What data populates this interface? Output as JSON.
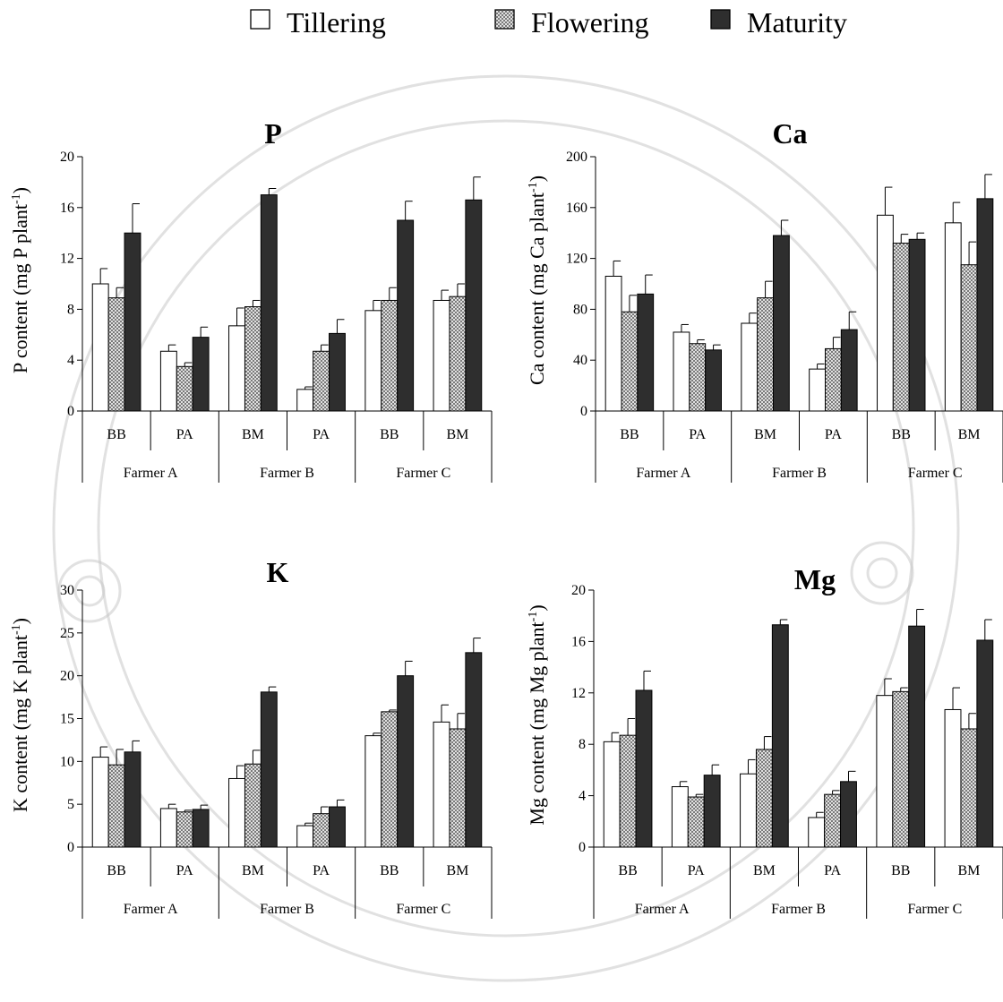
{
  "legend": {
    "items": [
      {
        "label": "Tillering",
        "color": "#ffffff"
      },
      {
        "label": "Flowering",
        "color": "#a8a8a8",
        "pattern": "checkered"
      },
      {
        "label": "Maturity",
        "color": "#2e2e2e"
      }
    ]
  },
  "chart_data": [
    {
      "type": "bar",
      "title": "P",
      "ylabel": "P content (mg P plant",
      "ylabel_sup": "-1",
      "ylabel_close": ")",
      "ylim": [
        0,
        20
      ],
      "yticks": [
        0,
        4,
        8,
        12,
        16,
        20
      ],
      "categories": [
        "BB",
        "PA",
        "BM",
        "PA",
        "BB",
        "BM"
      ],
      "groups": [
        {
          "label": "Farmer A",
          "span": 2
        },
        {
          "label": "Farmer B",
          "span": 2
        },
        {
          "label": "Farmer C",
          "span": 2
        }
      ],
      "series": [
        {
          "name": "Tillering",
          "values": [
            10.0,
            4.7,
            6.7,
            1.7,
            7.9,
            8.7
          ],
          "errors": [
            1.2,
            0.5,
            1.4,
            0.2,
            0.8,
            0.8
          ]
        },
        {
          "name": "Flowering",
          "values": [
            8.9,
            3.5,
            8.2,
            4.7,
            8.7,
            9.0
          ],
          "errors": [
            0.8,
            0.3,
            0.5,
            0.5,
            1.0,
            1.0
          ]
        },
        {
          "name": "Maturity",
          "values": [
            14.0,
            5.8,
            17.0,
            6.1,
            15.0,
            16.6
          ],
          "errors": [
            2.3,
            0.8,
            0.5,
            1.1,
            1.5,
            1.8
          ]
        }
      ]
    },
    {
      "type": "bar",
      "title": "Ca",
      "ylabel": "Ca content (mg Ca plant",
      "ylabel_sup": "-1",
      "ylabel_close": ")",
      "ylim": [
        0,
        200
      ],
      "yticks": [
        0,
        40,
        80,
        120,
        160,
        200
      ],
      "categories": [
        "BB",
        "PA",
        "BM",
        "PA",
        "BB",
        "BM"
      ],
      "groups": [
        {
          "label": "Farmer A",
          "span": 2
        },
        {
          "label": "Farmer B",
          "span": 2
        },
        {
          "label": "Farmer C",
          "span": 2
        }
      ],
      "series": [
        {
          "name": "Tillering",
          "values": [
            106,
            62,
            69,
            33,
            154,
            148
          ],
          "errors": [
            12,
            6,
            8,
            4,
            22,
            16
          ]
        },
        {
          "name": "Flowering",
          "values": [
            78,
            53,
            89,
            49,
            132,
            115
          ],
          "errors": [
            13,
            3,
            13,
            9,
            7,
            18
          ]
        },
        {
          "name": "Maturity",
          "values": [
            92,
            48,
            138,
            64,
            135,
            167
          ],
          "errors": [
            15,
            4,
            12,
            14,
            5,
            19
          ]
        }
      ]
    },
    {
      "type": "bar",
      "title": "K",
      "ylabel": "K content (mg K plant",
      "ylabel_sup": "-1",
      "ylabel_close": ")",
      "ylim": [
        0,
        30
      ],
      "yticks": [
        0,
        5,
        10,
        15,
        20,
        25,
        30
      ],
      "categories": [
        "BB",
        "PA",
        "BM",
        "PA",
        "BB",
        "BM"
      ],
      "groups": [
        {
          "label": "Farmer A",
          "span": 2
        },
        {
          "label": "Farmer B",
          "span": 2
        },
        {
          "label": "Farmer C",
          "span": 2
        }
      ],
      "series": [
        {
          "name": "Tillering",
          "values": [
            10.5,
            4.5,
            8.0,
            2.5,
            13.0,
            14.6
          ],
          "errors": [
            1.2,
            0.5,
            1.5,
            0.3,
            0.3,
            2.0
          ]
        },
        {
          "name": "Flowering",
          "values": [
            9.6,
            4.1,
            9.7,
            3.9,
            15.8,
            13.8
          ],
          "errors": [
            1.8,
            0.2,
            1.6,
            0.8,
            0.2,
            1.8
          ]
        },
        {
          "name": "Maturity",
          "values": [
            11.1,
            4.4,
            18.1,
            4.7,
            20.0,
            22.7
          ],
          "errors": [
            1.3,
            0.5,
            0.6,
            0.8,
            1.7,
            1.7
          ]
        }
      ]
    },
    {
      "type": "bar",
      "title": "Mg",
      "ylabel": "Mg content (mg Mg plant",
      "ylabel_sup": "-1",
      "ylabel_close": ")",
      "ylim": [
        0,
        20
      ],
      "yticks": [
        0,
        4,
        8,
        12,
        16,
        20
      ],
      "categories": [
        "BB",
        "PA",
        "BM",
        "PA",
        "BB",
        "BM"
      ],
      "groups": [
        {
          "label": "Farmer A",
          "span": 2
        },
        {
          "label": "Farmer B",
          "span": 2
        },
        {
          "label": "Farmer C",
          "span": 2
        }
      ],
      "series": [
        {
          "name": "Tillering",
          "values": [
            8.2,
            4.7,
            5.7,
            2.3,
            11.8,
            10.7
          ],
          "errors": [
            0.7,
            0.4,
            1.1,
            0.4,
            1.3,
            1.7
          ]
        },
        {
          "name": "Flowering",
          "values": [
            8.7,
            3.9,
            7.6,
            4.1,
            12.1,
            9.2
          ],
          "errors": [
            1.3,
            0.2,
            1.0,
            0.3,
            0.3,
            1.2
          ]
        },
        {
          "name": "Maturity",
          "values": [
            12.2,
            5.6,
            17.3,
            5.1,
            17.2,
            16.1
          ],
          "errors": [
            1.5,
            0.8,
            0.4,
            0.8,
            1.3,
            1.6
          ]
        }
      ]
    }
  ]
}
